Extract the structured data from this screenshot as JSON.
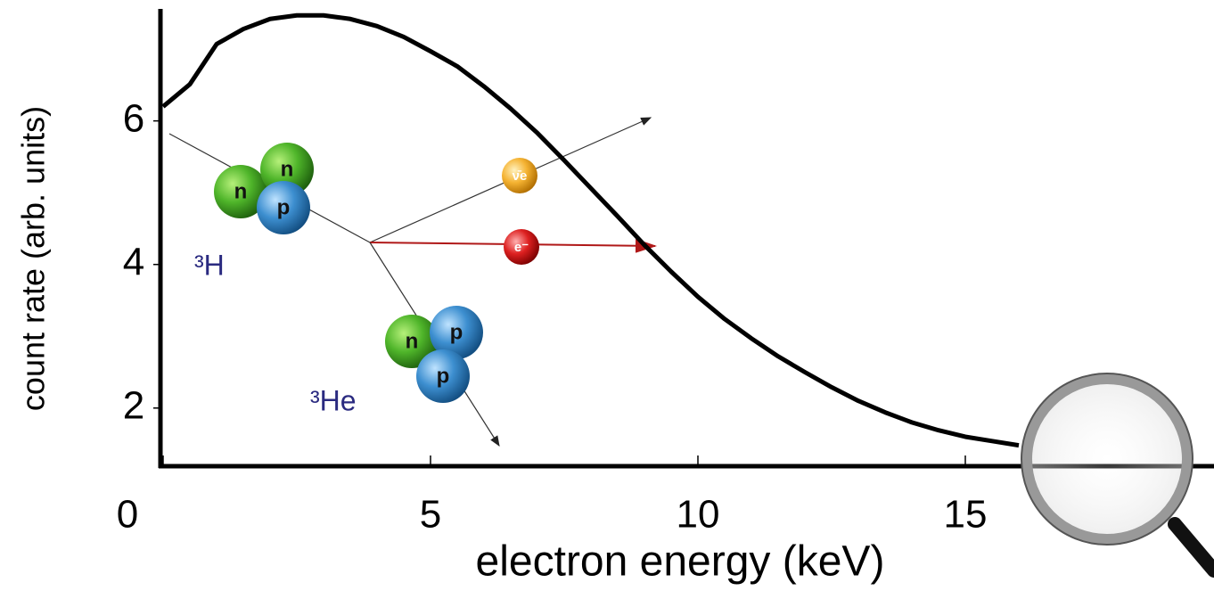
{
  "chart_data": {
    "type": "line",
    "x_label": "electron energy (keV)",
    "y_label": "count rate (arb. units)",
    "x": [
      0,
      0.5,
      1,
      1.5,
      2,
      2.5,
      3,
      3.5,
      4,
      4.5,
      5,
      5.5,
      6,
      6.5,
      7,
      7.5,
      8,
      8.5,
      9,
      9.5,
      10,
      10.5,
      11,
      11.5,
      12,
      12.5,
      13,
      13.5,
      14,
      14.5,
      15,
      15.5,
      16
    ],
    "values": [
      6.2,
      6.51,
      7.07,
      7.28,
      7.42,
      7.47,
      7.47,
      7.42,
      7.32,
      7.17,
      6.97,
      6.76,
      6.48,
      6.17,
      5.83,
      5.45,
      5.06,
      4.67,
      4.27,
      3.9,
      3.55,
      3.24,
      2.97,
      2.72,
      2.5,
      2.29,
      2.1,
      1.94,
      1.8,
      1.69,
      1.6,
      1.54,
      1.48
    ],
    "color": "#000000",
    "xlim": [
      0,
      19.65
    ],
    "xticks": [
      0,
      5,
      10,
      15
    ],
    "ylim": [
      1.19,
      7.56
    ],
    "yticks": [
      2,
      4,
      6
    ],
    "annotations": [
      "³H",
      "³He",
      "ν̄e",
      "e⁻",
      "n",
      "n",
      "p",
      "n",
      "p",
      "p"
    ]
  }
}
